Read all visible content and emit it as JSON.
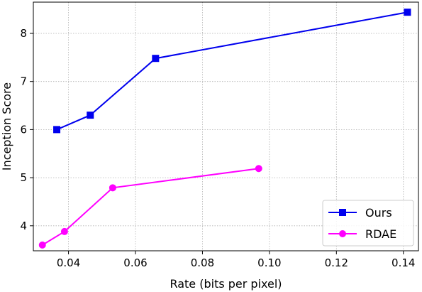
{
  "chart_data": {
    "type": "line",
    "title": "",
    "xlabel": "Rate (bits per pixel)",
    "ylabel": "Inception Score",
    "xlim": [
      0.0295,
      0.1445
    ],
    "ylim": [
      3.48,
      8.65
    ],
    "xticks": [
      0.04,
      0.06,
      0.08,
      0.1,
      0.12,
      0.14
    ],
    "xtick_labels": [
      "0.04",
      "0.06",
      "0.08",
      "0.10",
      "0.12",
      "0.14"
    ],
    "yticks": [
      4,
      5,
      6,
      7,
      8
    ],
    "ytick_labels": [
      "4",
      "5",
      "6",
      "7",
      "8"
    ],
    "grid": true,
    "legend_position": "bottom-right",
    "series": [
      {
        "name": "Ours",
        "color": "#0000ee",
        "marker": "square",
        "x": [
          0.0365,
          0.0465,
          0.066,
          0.1412
        ],
        "y": [
          6.0,
          6.3,
          7.48,
          8.44
        ]
      },
      {
        "name": "RDAE",
        "color": "#ff00ff",
        "marker": "circle",
        "x": [
          0.0322,
          0.0388,
          0.0532,
          0.0968
        ],
        "y": [
          3.6,
          3.88,
          4.79,
          5.19
        ]
      }
    ]
  }
}
